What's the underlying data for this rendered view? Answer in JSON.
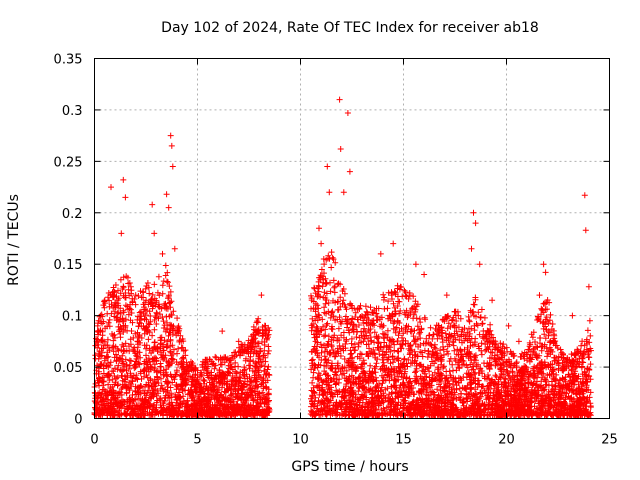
{
  "chart_data": {
    "type": "scatter",
    "title": "Day 102 of 2024, Rate Of TEC Index for receiver ab18",
    "xlabel": "GPS time / hours",
    "ylabel": "ROTI / TECUs",
    "xlim": [
      0,
      25
    ],
    "ylim": [
      0,
      0.35
    ],
    "xticks": [
      0,
      5,
      10,
      15,
      20,
      25
    ],
    "xtick_labels": [
      "0",
      "5",
      "10",
      "15",
      "20",
      "25"
    ],
    "yticks": [
      0,
      0.05,
      0.1,
      0.15,
      0.2,
      0.25,
      0.3,
      0.35
    ],
    "ytick_labels": [
      "0",
      "0.05",
      "0.1",
      "0.15",
      "0.2",
      "0.25",
      "0.3",
      "0.35"
    ],
    "grid": true,
    "marker": "+",
    "color": "#ff0000",
    "series": [
      {
        "name": "ROTI",
        "segments": [
          {
            "x_start": 0.0,
            "x_end": 8.5
          },
          {
            "x_start": 10.5,
            "x_end": 24.1
          }
        ],
        "envelope": [
          [
            0.0,
            0.08
          ],
          [
            0.5,
            0.12
          ],
          [
            1.0,
            0.13
          ],
          [
            1.5,
            0.15
          ],
          [
            2.0,
            0.12
          ],
          [
            2.5,
            0.13
          ],
          [
            3.0,
            0.14
          ],
          [
            3.5,
            0.15
          ],
          [
            4.0,
            0.1
          ],
          [
            4.5,
            0.06
          ],
          [
            5.0,
            0.05
          ],
          [
            5.5,
            0.06
          ],
          [
            6.0,
            0.06
          ],
          [
            6.5,
            0.06
          ],
          [
            7.0,
            0.07
          ],
          [
            7.5,
            0.08
          ],
          [
            8.0,
            0.1
          ],
          [
            8.5,
            0.09
          ],
          [
            10.5,
            0.12
          ],
          [
            11.0,
            0.15
          ],
          [
            11.5,
            0.17
          ],
          [
            12.0,
            0.13
          ],
          [
            12.5,
            0.11
          ],
          [
            13.0,
            0.11
          ],
          [
            13.5,
            0.11
          ],
          [
            14.0,
            0.12
          ],
          [
            14.5,
            0.13
          ],
          [
            15.0,
            0.13
          ],
          [
            15.5,
            0.12
          ],
          [
            16.0,
            0.1
          ],
          [
            16.5,
            0.09
          ],
          [
            17.0,
            0.1
          ],
          [
            17.5,
            0.11
          ],
          [
            18.0,
            0.09
          ],
          [
            18.5,
            0.12
          ],
          [
            19.0,
            0.1
          ],
          [
            19.5,
            0.08
          ],
          [
            20.0,
            0.07
          ],
          [
            20.5,
            0.06
          ],
          [
            21.0,
            0.07
          ],
          [
            21.5,
            0.1
          ],
          [
            22.0,
            0.12
          ],
          [
            22.5,
            0.07
          ],
          [
            23.0,
            0.06
          ],
          [
            23.5,
            0.07
          ],
          [
            24.0,
            0.09
          ],
          [
            24.1,
            0.08
          ]
        ],
        "peaks": [
          [
            0.2,
            0.095
          ],
          [
            0.8,
            0.225
          ],
          [
            1.3,
            0.18
          ],
          [
            1.4,
            0.232
          ],
          [
            1.5,
            0.215
          ],
          [
            2.0,
            0.12
          ],
          [
            2.8,
            0.208
          ],
          [
            2.9,
            0.18
          ],
          [
            3.3,
            0.16
          ],
          [
            3.5,
            0.218
          ],
          [
            3.6,
            0.205
          ],
          [
            3.7,
            0.275
          ],
          [
            3.75,
            0.265
          ],
          [
            3.8,
            0.245
          ],
          [
            3.9,
            0.165
          ],
          [
            6.2,
            0.085
          ],
          [
            7.0,
            0.075
          ],
          [
            8.1,
            0.12
          ],
          [
            8.3,
            0.09
          ],
          [
            10.9,
            0.185
          ],
          [
            11.0,
            0.17
          ],
          [
            11.3,
            0.245
          ],
          [
            11.4,
            0.22
          ],
          [
            11.6,
            0.155
          ],
          [
            11.9,
            0.31
          ],
          [
            11.95,
            0.262
          ],
          [
            12.1,
            0.22
          ],
          [
            12.3,
            0.297
          ],
          [
            12.4,
            0.24
          ],
          [
            13.9,
            0.16
          ],
          [
            14.5,
            0.17
          ],
          [
            15.6,
            0.15
          ],
          [
            16.0,
            0.14
          ],
          [
            17.1,
            0.12
          ],
          [
            18.3,
            0.165
          ],
          [
            18.4,
            0.2
          ],
          [
            18.5,
            0.19
          ],
          [
            18.7,
            0.15
          ],
          [
            19.3,
            0.115
          ],
          [
            20.1,
            0.09
          ],
          [
            20.6,
            0.075
          ],
          [
            21.6,
            0.12
          ],
          [
            21.8,
            0.15
          ],
          [
            21.9,
            0.142
          ],
          [
            23.2,
            0.1
          ],
          [
            23.8,
            0.217
          ],
          [
            23.85,
            0.183
          ],
          [
            24.0,
            0.128
          ],
          [
            24.05,
            0.095
          ]
        ]
      }
    ]
  }
}
